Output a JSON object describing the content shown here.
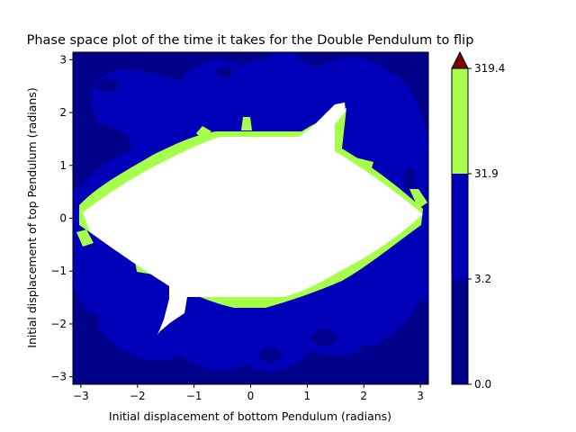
{
  "chart_data": {
    "type": "heatmap",
    "title": "Phase space plot of the time it takes for the Double Pendulum to flip",
    "xlabel": "Initial displacement of bottom Pendulum (radians)",
    "ylabel": "Initial displacement of top Pendulum (radians)",
    "xlim": [
      -3.14159,
      3.14159
    ],
    "ylim": [
      -3.14159,
      3.14159
    ],
    "x_ticks": [
      -3,
      -2,
      -1,
      0,
      1,
      2,
      3
    ],
    "y_ticks": [
      -3,
      -2,
      -1,
      0,
      1,
      2,
      3
    ],
    "x_tick_labels": [
      "−3",
      "−2",
      "−1",
      "0",
      "1",
      "2",
      "3"
    ],
    "y_tick_labels": [
      "−3",
      "−2",
      "−1",
      "0",
      "1",
      "2",
      "3"
    ],
    "grid": false,
    "colorbar": {
      "levels": [
        0.0,
        3.2,
        31.9,
        319.4
      ],
      "labels": [
        "0.0",
        "3.2",
        "31.9",
        "319.4"
      ],
      "colors": [
        "#00008b",
        "#0000b8",
        "#a6ff4a"
      ],
      "extend_color": "#800000",
      "extend": "max"
    },
    "regions": [
      {
        "name": "background (0.0 – 3.2)",
        "color": "#00008b"
      },
      {
        "name": "3.2 – 31.9",
        "color": "#0000b8"
      },
      {
        "name": "31.9 – 319.4",
        "color": "#a6ff4a"
      },
      {
        "name": "no flip",
        "color": "#ffffff"
      }
    ]
  }
}
